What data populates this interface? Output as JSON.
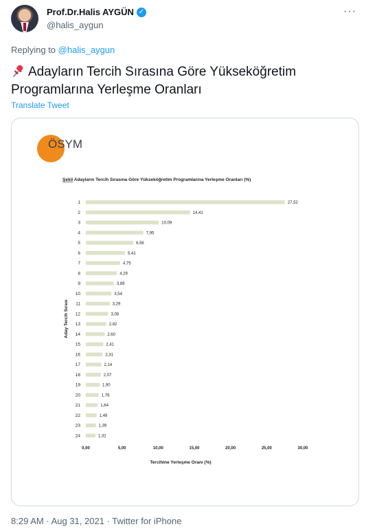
{
  "author": {
    "name": "Prof.Dr.Halis AYGÜN",
    "handle": "@halis_aygun",
    "verified_icon": "verified-badge-icon"
  },
  "reply": {
    "prefix": "Replying to",
    "target": "@halis_aygun"
  },
  "tweet": {
    "emoji_icon": "pushpin-icon",
    "text": "Adayların Tercih Sırasına Göre Yükseköğretim Programlarına Yerleşme Oranları",
    "translate_label": "Translate Tweet"
  },
  "image": {
    "logo_text": "ÖSYM",
    "logo_color": "#f08a1c",
    "caption_prefix": "Şekil",
    "caption_rest": " Adayların Tercih Sırasına Göre Yükseköğretim Programlarına Yerleşme Oranları (%)"
  },
  "chart_data": {
    "type": "bar",
    "orientation": "horizontal",
    "categories": [
      "1",
      "2",
      "3",
      "4",
      "5",
      "6",
      "7",
      "8",
      "9",
      "10",
      "11",
      "12",
      "13",
      "14",
      "15",
      "16",
      "17",
      "18",
      "19",
      "20",
      "21",
      "22",
      "23",
      "24"
    ],
    "values": [
      27.52,
      14.41,
      10.09,
      7.95,
      6.56,
      5.41,
      4.75,
      4.29,
      3.88,
      3.54,
      3.29,
      3.08,
      2.82,
      2.6,
      2.41,
      2.31,
      2.14,
      2.07,
      1.9,
      1.78,
      1.64,
      1.49,
      1.39,
      1.32
    ],
    "value_labels": [
      "27,52",
      "14,41",
      "10,09",
      "7,95",
      "6,56",
      "5,41",
      "4,75",
      "4,29",
      "3,88",
      "3,54",
      "3,29",
      "3,08",
      "2,82",
      "2,60",
      "2,41",
      "2,31",
      "2,14",
      "2,07",
      "1,90",
      "1,78",
      "1,64",
      "1,49",
      "1,39",
      "1,32"
    ],
    "x_ticks": [
      0,
      5,
      10,
      15,
      20,
      25,
      30
    ],
    "x_tick_labels": [
      "0,00",
      "5,00",
      "10,00",
      "15,00",
      "20,00",
      "25,00",
      "30,00"
    ],
    "xlim": [
      0,
      30
    ],
    "xlabel": "Tercihine Yerleşme Oranı (%)",
    "ylabel": "Aday Tercih Sırası",
    "bar_color": "#dde3c9",
    "grid": false
  },
  "footer": {
    "time": "8:29 AM",
    "date": "Aug 31, 2021",
    "source": "Twitter for iPhone",
    "separator": "·"
  }
}
